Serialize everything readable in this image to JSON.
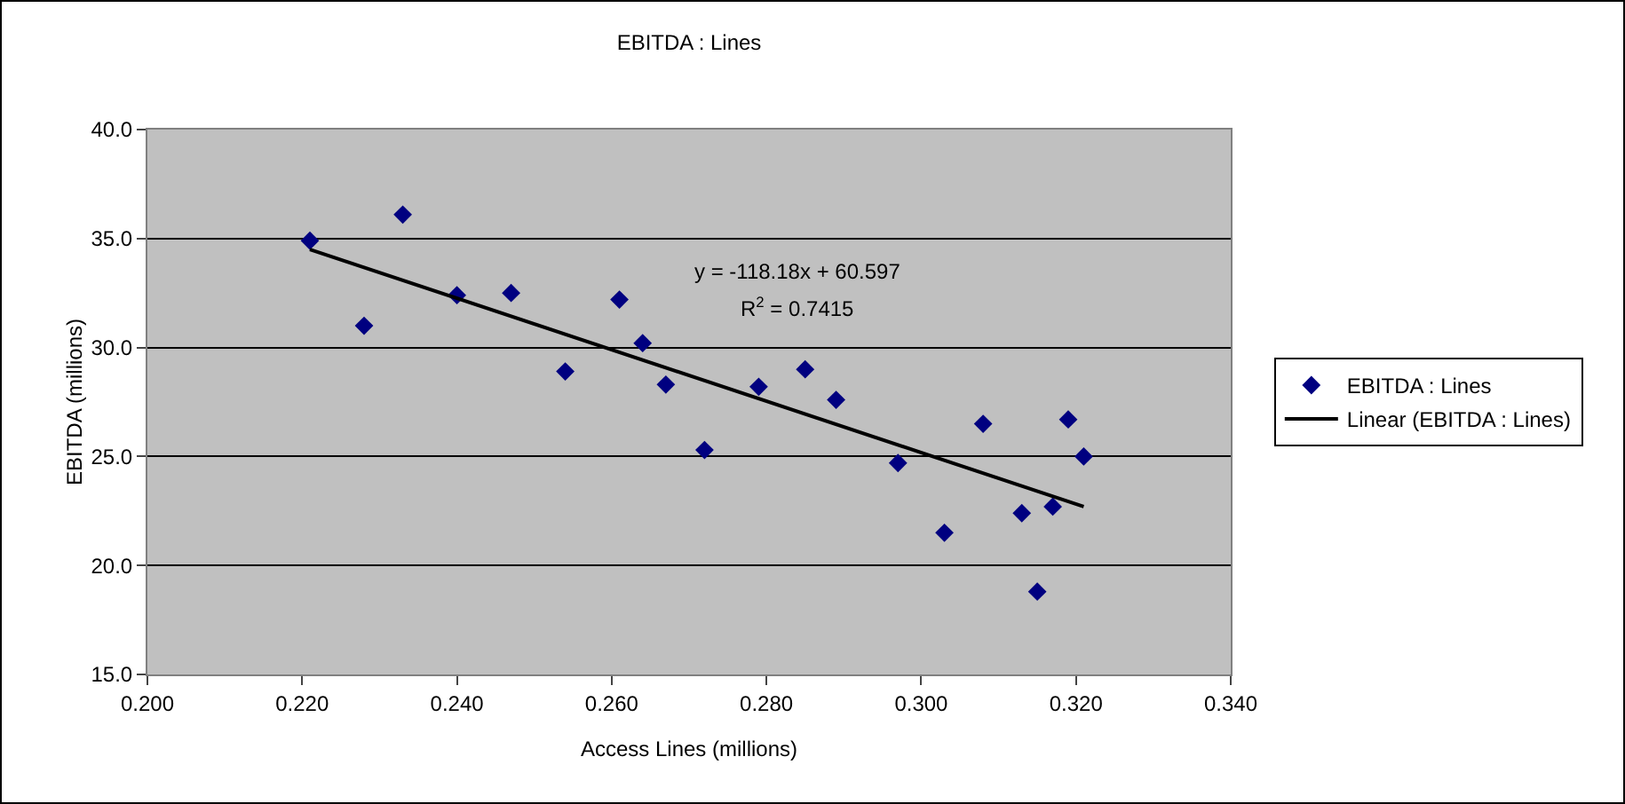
{
  "chart_data": {
    "type": "scatter",
    "title": "EBITDA : Lines",
    "xlabel": "Access Lines (millions)",
    "ylabel": "EBITDA (millions)",
    "xlim": [
      0.2,
      0.34
    ],
    "xticks": [
      {
        "value": 0.2,
        "label": "0.200"
      },
      {
        "value": 0.22,
        "label": "0.220"
      },
      {
        "value": 0.24,
        "label": "0.240"
      },
      {
        "value": 0.26,
        "label": "0.260"
      },
      {
        "value": 0.28,
        "label": "0.280"
      },
      {
        "value": 0.3,
        "label": "0.300"
      },
      {
        "value": 0.32,
        "label": "0.320"
      },
      {
        "value": 0.34,
        "label": "0.340"
      }
    ],
    "ylim": [
      15,
      40
    ],
    "yticks": [
      {
        "value": 15,
        "label": "15.0"
      },
      {
        "value": 20,
        "label": "20.0"
      },
      {
        "value": 25,
        "label": "25.0"
      },
      {
        "value": 30,
        "label": "30.0"
      },
      {
        "value": 35,
        "label": "35.0"
      },
      {
        "value": 40,
        "label": "40.0"
      }
    ],
    "grid": "y",
    "legend": "right",
    "series": [
      {
        "name": "EBITDA : Lines",
        "marker": "diamond",
        "color": "#000080",
        "x": [
          0.221,
          0.228,
          0.233,
          0.24,
          0.247,
          0.254,
          0.261,
          0.264,
          0.267,
          0.272,
          0.279,
          0.285,
          0.289,
          0.297,
          0.303,
          0.308,
          0.313,
          0.315,
          0.317,
          0.319,
          0.321
        ],
        "values": [
          34.9,
          31.0,
          36.1,
          32.4,
          32.5,
          28.9,
          32.2,
          30.2,
          28.3,
          25.3,
          28.2,
          29.0,
          27.6,
          24.7,
          21.5,
          26.5,
          22.4,
          18.8,
          22.7,
          26.7,
          25.0
        ]
      },
      {
        "name": "Linear (EBITDA : Lines)",
        "type": "line",
        "marker": "none",
        "color": "#000000",
        "x": [
          0.221,
          0.321
        ],
        "values": [
          34.5,
          22.7
        ]
      }
    ],
    "annotations": [
      "y = -118.18x + 60.597",
      "R$^{2}$ = 0.7415"
    ]
  }
}
